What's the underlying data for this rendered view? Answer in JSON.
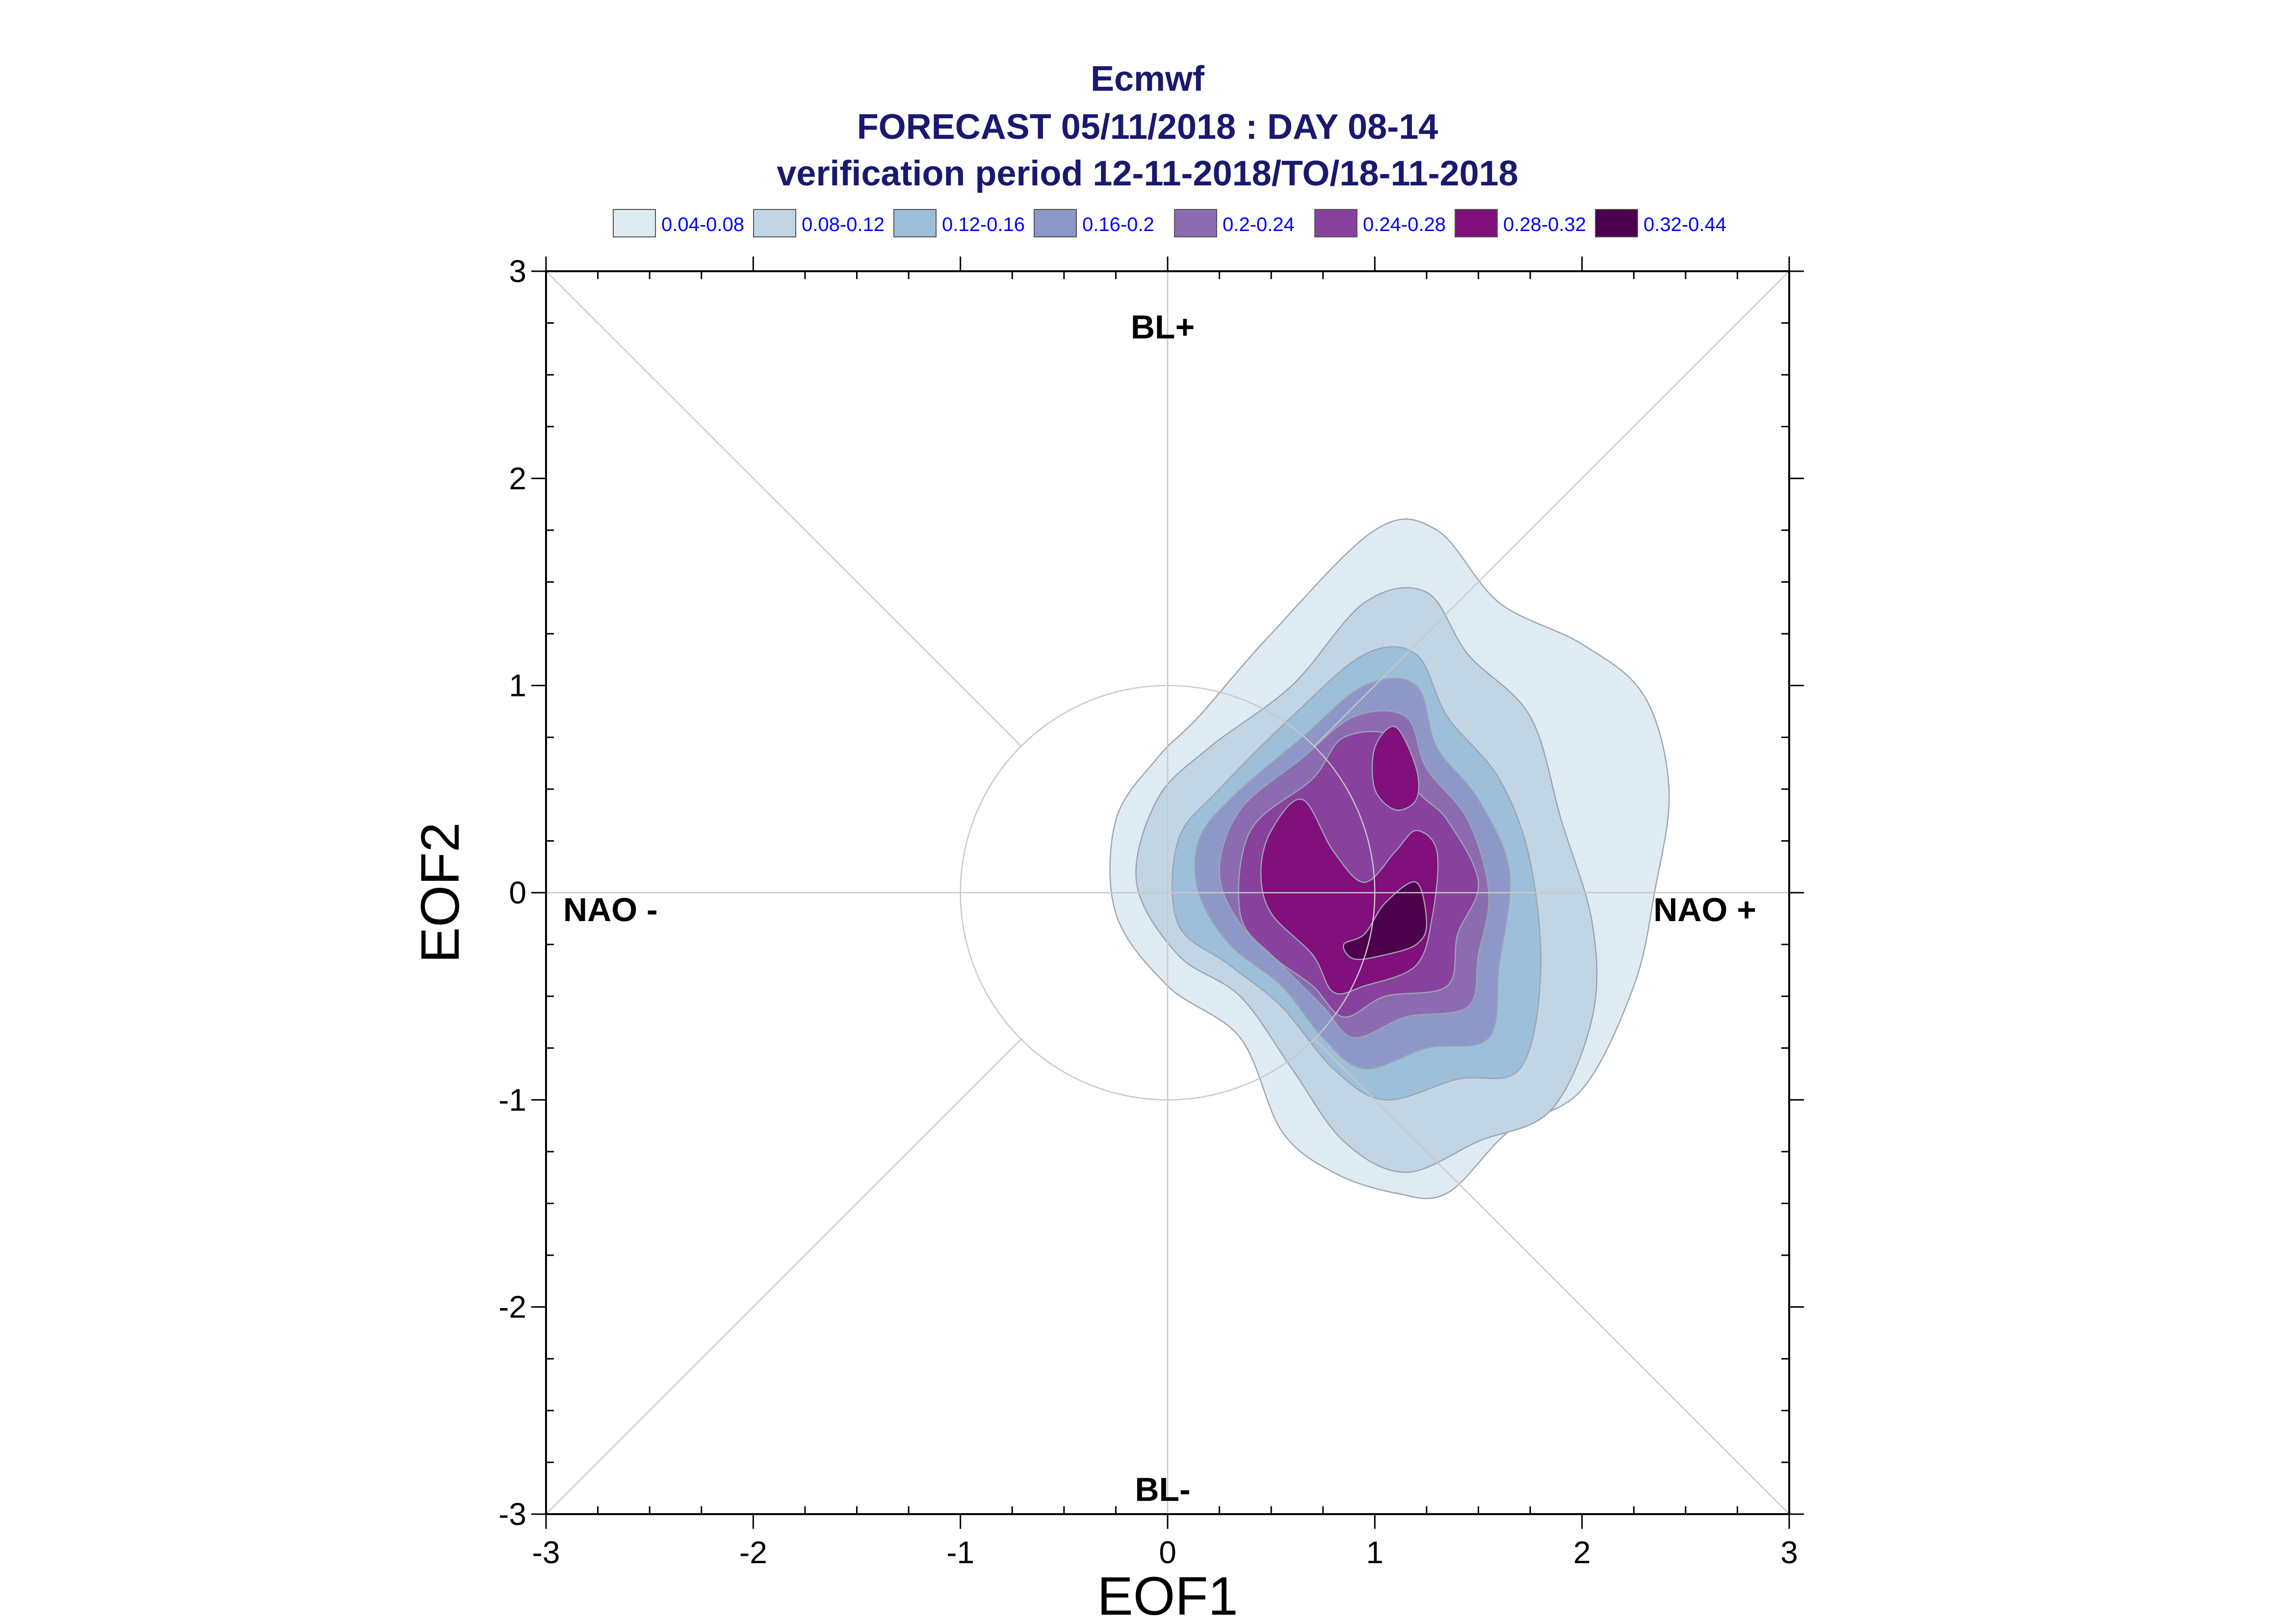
{
  "header": {
    "title": "Ecmwf",
    "subtitle": "FORECAST 05/11/2018 : DAY 08-14",
    "period": "verification period 12-11-2018/TO/18-11-2018"
  },
  "chart_data": {
    "type": "contour",
    "xlabel": "EOF1",
    "ylabel": "EOF2",
    "xlim": [
      -3,
      3
    ],
    "ylim": [
      -3,
      3
    ],
    "xticks": [
      "-3",
      "-2",
      "-1",
      "0",
      "1",
      "2",
      "3"
    ],
    "yticks": [
      "3",
      "2",
      "1",
      "0",
      "-1",
      "-2",
      "-3"
    ],
    "grid": false,
    "reference_circle_radius": 1,
    "diagonals": true,
    "legend_position": "top",
    "legend": [
      {
        "label": "0.04-0.08",
        "color": "#deebf3"
      },
      {
        "label": "0.08-0.12",
        "color": "#c2d5e5"
      },
      {
        "label": "0.12-0.16",
        "color": "#9ebfd9"
      },
      {
        "label": "0.16-0.2",
        "color": "#8d97c8"
      },
      {
        "label": "0.2-0.24",
        "color": "#8c6bb1"
      },
      {
        "label": "0.24-0.28",
        "color": "#88419d"
      },
      {
        "label": "0.28-0.32",
        "color": "#810f7c"
      },
      {
        "label": "0.32-0.44",
        "color": "#4d004b"
      }
    ],
    "region_labels": {
      "top": "BL+",
      "bottom": "BL-",
      "left": "NAO -",
      "right": "NAO +"
    },
    "contour_levels": [
      {
        "level": "0.04-0.08",
        "points": [
          [
            0.15,
            0.85
          ],
          [
            0.5,
            1.25
          ],
          [
            1.0,
            1.75
          ],
          [
            1.3,
            1.75
          ],
          [
            1.6,
            1.4
          ],
          [
            2.0,
            1.2
          ],
          [
            2.3,
            0.95
          ],
          [
            2.42,
            0.5
          ],
          [
            2.35,
            0.0
          ],
          [
            2.25,
            -0.45
          ],
          [
            2.0,
            -0.95
          ],
          [
            1.65,
            -1.15
          ],
          [
            1.35,
            -1.45
          ],
          [
            1.1,
            -1.45
          ],
          [
            0.8,
            -1.35
          ],
          [
            0.55,
            -1.15
          ],
          [
            0.35,
            -0.7
          ],
          [
            0.0,
            -0.45
          ],
          [
            -0.25,
            -0.1
          ],
          [
            -0.25,
            0.35
          ],
          [
            -0.05,
            0.65
          ]
        ]
      },
      {
        "level": "0.08-0.12",
        "points": [
          [
            0.2,
            0.7
          ],
          [
            0.6,
            1.0
          ],
          [
            0.95,
            1.4
          ],
          [
            1.25,
            1.45
          ],
          [
            1.45,
            1.15
          ],
          [
            1.75,
            0.85
          ],
          [
            1.9,
            0.35
          ],
          [
            2.05,
            -0.15
          ],
          [
            2.05,
            -0.6
          ],
          [
            1.85,
            -1.05
          ],
          [
            1.5,
            -1.2
          ],
          [
            1.15,
            -1.35
          ],
          [
            0.85,
            -1.2
          ],
          [
            0.6,
            -0.85
          ],
          [
            0.35,
            -0.5
          ],
          [
            0.05,
            -0.3
          ],
          [
            -0.15,
            0.05
          ],
          [
            -0.05,
            0.45
          ]
        ]
      },
      {
        "level": "0.12-0.16",
        "points": [
          [
            0.25,
            0.5
          ],
          [
            0.6,
            0.85
          ],
          [
            0.95,
            1.15
          ],
          [
            1.2,
            1.15
          ],
          [
            1.35,
            0.85
          ],
          [
            1.6,
            0.55
          ],
          [
            1.75,
            0.15
          ],
          [
            1.8,
            -0.4
          ],
          [
            1.7,
            -0.85
          ],
          [
            1.4,
            -0.9
          ],
          [
            1.05,
            -1.0
          ],
          [
            0.8,
            -0.85
          ],
          [
            0.55,
            -0.55
          ],
          [
            0.3,
            -0.35
          ],
          [
            0.05,
            -0.15
          ],
          [
            0.05,
            0.25
          ]
        ]
      },
      {
        "level": "0.16-0.2",
        "points": [
          [
            0.3,
            0.45
          ],
          [
            0.65,
            0.75
          ],
          [
            0.95,
            1.0
          ],
          [
            1.2,
            1.0
          ],
          [
            1.3,
            0.7
          ],
          [
            1.5,
            0.45
          ],
          [
            1.65,
            0.1
          ],
          [
            1.6,
            -0.35
          ],
          [
            1.55,
            -0.7
          ],
          [
            1.25,
            -0.75
          ],
          [
            0.95,
            -0.85
          ],
          [
            0.75,
            -0.7
          ],
          [
            0.55,
            -0.45
          ],
          [
            0.3,
            -0.25
          ],
          [
            0.15,
            0.0
          ],
          [
            0.15,
            0.25
          ]
        ]
      },
      {
        "level": "0.2-0.24",
        "points": [
          [
            0.35,
            0.4
          ],
          [
            0.65,
            0.65
          ],
          [
            0.9,
            0.85
          ],
          [
            1.15,
            0.85
          ],
          [
            1.25,
            0.6
          ],
          [
            1.45,
            0.35
          ],
          [
            1.55,
            0.0
          ],
          [
            1.5,
            -0.3
          ],
          [
            1.45,
            -0.55
          ],
          [
            1.15,
            -0.6
          ],
          [
            0.9,
            -0.7
          ],
          [
            0.75,
            -0.55
          ],
          [
            0.55,
            -0.35
          ],
          [
            0.35,
            -0.15
          ],
          [
            0.25,
            0.1
          ]
        ]
      },
      {
        "level": "0.24-0.28",
        "points": [
          [
            0.4,
            0.3
          ],
          [
            0.7,
            0.55
          ],
          [
            0.85,
            0.75
          ],
          [
            1.1,
            0.75
          ],
          [
            1.2,
            0.5
          ],
          [
            1.35,
            0.35
          ],
          [
            1.5,
            0.05
          ],
          [
            1.4,
            -0.2
          ],
          [
            1.35,
            -0.45
          ],
          [
            1.05,
            -0.5
          ],
          [
            0.85,
            -0.6
          ],
          [
            0.7,
            -0.45
          ],
          [
            0.5,
            -0.3
          ],
          [
            0.35,
            -0.1
          ]
        ]
      },
      {
        "level": "0.28-0.32",
        "points": [
          [
            0.5,
            0.3
          ],
          [
            0.65,
            0.45
          ],
          [
            0.8,
            0.2
          ],
          [
            0.95,
            0.05
          ],
          [
            1.1,
            0.2
          ],
          [
            1.2,
            0.3
          ],
          [
            1.3,
            0.2
          ],
          [
            1.28,
            -0.1
          ],
          [
            1.2,
            -0.35
          ],
          [
            0.95,
            -0.45
          ],
          [
            0.8,
            -0.48
          ],
          [
            0.7,
            -0.3
          ],
          [
            0.5,
            -0.1
          ],
          [
            0.45,
            0.1
          ]
        ]
      },
      {
        "level": "0.28-0.32",
        "points": [
          [
            1.0,
            0.7
          ],
          [
            1.1,
            0.8
          ],
          [
            1.2,
            0.6
          ],
          [
            1.2,
            0.45
          ],
          [
            1.1,
            0.4
          ],
          [
            1.0,
            0.5
          ]
        ]
      },
      {
        "level": "0.32-0.44",
        "points": [
          [
            0.95,
            -0.2
          ],
          [
            1.05,
            -0.05
          ],
          [
            1.2,
            0.05
          ],
          [
            1.25,
            -0.15
          ],
          [
            1.2,
            -0.25
          ],
          [
            1.05,
            -0.3
          ],
          [
            0.9,
            -0.32
          ],
          [
            0.85,
            -0.25
          ]
        ]
      }
    ]
  }
}
